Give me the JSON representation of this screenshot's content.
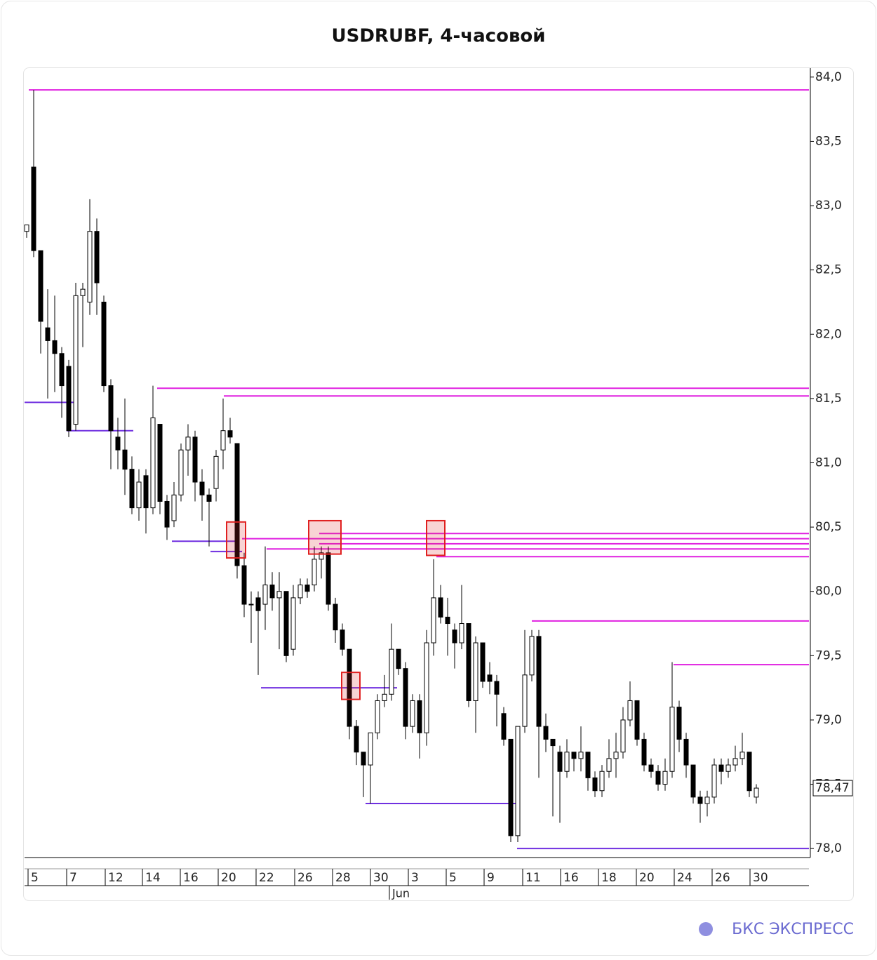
{
  "chart_data": {
    "type": "candlestick",
    "title": "USDRUBF, 4-часовой",
    "xlim": [
      -0.3,
      111.5
    ],
    "xticks": [
      {
        "value": 0.2,
        "label": "5"
      },
      {
        "value": 5.7,
        "label": "7"
      },
      {
        "value": 11.2,
        "label": "12"
      },
      {
        "value": 16.5,
        "label": "14"
      },
      {
        "value": 21.9,
        "label": "16"
      },
      {
        "value": 27.3,
        "label": "20"
      },
      {
        "value": 32.7,
        "label": "22"
      },
      {
        "value": 38.2,
        "label": "26"
      },
      {
        "value": 43.6,
        "label": "28"
      },
      {
        "value": 49.0,
        "label": "30"
      },
      {
        "value": 54.4,
        "label": "3"
      },
      {
        "value": 59.8,
        "label": "5"
      },
      {
        "value": 65.2,
        "label": "9"
      },
      {
        "value": 70.7,
        "label": "11"
      },
      {
        "value": 76.1,
        "label": "16"
      },
      {
        "value": 81.5,
        "label": "18"
      },
      {
        "value": 86.9,
        "label": "20"
      },
      {
        "value": 92.3,
        "label": "24"
      },
      {
        "value": 97.7,
        "label": "26"
      },
      {
        "value": 103.1,
        "label": "30"
      }
    ],
    "month_ticks": [
      {
        "value": 51.7,
        "label": "Jun"
      }
    ],
    "ylim": [
      77.93,
      84.07
    ],
    "yticks": [
      {
        "value": 78.0,
        "label": "78,0"
      },
      {
        "value": 78.5,
        "label": "78,5"
      },
      {
        "value": 79.0,
        "label": "79,0"
      },
      {
        "value": 79.5,
        "label": "79,5"
      },
      {
        "value": 80.0,
        "label": "80,0"
      },
      {
        "value": 80.5,
        "label": "80,5"
      },
      {
        "value": 81.0,
        "label": "81,0"
      },
      {
        "value": 81.5,
        "label": "81,5"
      },
      {
        "value": 82.0,
        "label": "82,0"
      },
      {
        "value": 82.5,
        "label": "82,5"
      },
      {
        "value": 83.0,
        "label": "83,0"
      },
      {
        "value": 83.5,
        "label": "83,5"
      },
      {
        "value": 84.0,
        "label": "84,0"
      }
    ],
    "up_color": "#ffffff",
    "down_color": "#000000",
    "series": [
      {
        "values": [
          [
            82.8,
            82.85,
            82.75,
            82.85
          ],
          [
            83.3,
            83.9,
            82.6,
            82.65
          ],
          [
            82.65,
            82.65,
            81.85,
            82.1
          ],
          [
            82.05,
            82.35,
            81.5,
            81.95
          ],
          [
            81.95,
            82.3,
            81.55,
            81.85
          ],
          [
            81.85,
            81.9,
            81.35,
            81.6
          ],
          [
            81.75,
            81.8,
            81.2,
            81.25
          ],
          [
            81.3,
            82.4,
            81.25,
            82.3
          ],
          [
            82.3,
            82.4,
            81.9,
            82.35
          ],
          [
            82.25,
            83.05,
            82.15,
            82.8
          ],
          [
            82.8,
            82.9,
            82.15,
            82.4
          ],
          [
            82.25,
            82.3,
            81.55,
            81.6
          ],
          [
            81.6,
            81.65,
            80.95,
            81.25
          ],
          [
            81.2,
            81.35,
            80.95,
            81.1
          ],
          [
            81.1,
            81.5,
            80.75,
            80.95
          ],
          [
            80.95,
            81.05,
            80.6,
            80.65
          ],
          [
            80.65,
            80.95,
            80.55,
            80.85
          ],
          [
            80.9,
            80.95,
            80.45,
            80.65
          ],
          [
            80.65,
            81.6,
            80.6,
            81.35
          ],
          [
            81.3,
            81.3,
            80.6,
            80.7
          ],
          [
            80.7,
            80.75,
            80.4,
            80.5
          ],
          [
            80.55,
            80.85,
            80.5,
            80.75
          ],
          [
            80.75,
            81.15,
            80.7,
            81.1
          ],
          [
            81.1,
            81.3,
            80.9,
            81.2
          ],
          [
            81.2,
            81.25,
            80.7,
            80.85
          ],
          [
            80.85,
            80.95,
            80.55,
            80.75
          ],
          [
            80.75,
            80.8,
            80.35,
            80.7
          ],
          [
            80.8,
            81.1,
            80.7,
            81.05
          ],
          [
            81.1,
            81.5,
            80.95,
            81.25
          ],
          [
            81.25,
            81.35,
            81.15,
            81.2
          ],
          [
            81.15,
            81.15,
            80.1,
            80.2
          ],
          [
            80.2,
            80.3,
            79.8,
            79.9
          ],
          [
            79.9,
            80.0,
            79.6,
            79.9
          ],
          [
            79.95,
            80.0,
            79.35,
            79.85
          ],
          [
            79.9,
            80.35,
            79.7,
            80.05
          ],
          [
            80.05,
            80.15,
            79.85,
            79.95
          ],
          [
            79.95,
            80.15,
            79.55,
            80.0
          ],
          [
            80.0,
            80.0,
            79.45,
            79.5
          ],
          [
            79.55,
            80.05,
            79.5,
            79.95
          ],
          [
            79.95,
            80.1,
            79.9,
            80.05
          ],
          [
            80.05,
            80.1,
            79.95,
            80.0
          ],
          [
            80.05,
            80.35,
            80.0,
            80.25
          ],
          [
            80.25,
            80.35,
            80.1,
            80.3
          ],
          [
            80.3,
            80.35,
            79.85,
            79.9
          ],
          [
            79.9,
            79.95,
            79.6,
            79.7
          ],
          [
            79.7,
            79.75,
            79.5,
            79.55
          ],
          [
            79.55,
            79.55,
            78.85,
            78.95
          ],
          [
            78.95,
            79.0,
            78.65,
            78.75
          ],
          [
            78.75,
            78.75,
            78.4,
            78.65
          ],
          [
            78.65,
            78.9,
            78.35,
            78.9
          ],
          [
            78.9,
            79.2,
            78.85,
            79.15
          ],
          [
            79.15,
            79.35,
            79.1,
            79.2
          ],
          [
            79.2,
            79.75,
            79.15,
            79.55
          ],
          [
            79.55,
            79.55,
            79.35,
            79.4
          ],
          [
            79.4,
            79.45,
            78.85,
            78.95
          ],
          [
            78.95,
            79.2,
            78.9,
            79.15
          ],
          [
            79.15,
            79.2,
            78.7,
            78.9
          ],
          [
            78.9,
            79.7,
            78.8,
            79.6
          ],
          [
            79.6,
            80.25,
            79.5,
            79.95
          ],
          [
            79.95,
            80.05,
            79.75,
            79.8
          ],
          [
            79.8,
            79.95,
            79.5,
            79.75
          ],
          [
            79.7,
            79.75,
            79.4,
            79.6
          ],
          [
            79.6,
            80.05,
            79.55,
            79.75
          ],
          [
            79.75,
            79.75,
            79.1,
            79.15
          ],
          [
            79.15,
            79.65,
            78.9,
            79.6
          ],
          [
            79.6,
            79.6,
            79.25,
            79.3
          ],
          [
            79.35,
            79.45,
            79.2,
            79.3
          ],
          [
            79.3,
            79.35,
            78.95,
            79.2
          ],
          [
            79.05,
            79.1,
            78.8,
            78.85
          ],
          [
            78.85,
            78.85,
            78.05,
            78.1
          ],
          [
            78.1,
            78.95,
            78.05,
            78.95
          ],
          [
            78.95,
            79.7,
            78.9,
            79.35
          ],
          [
            79.35,
            79.7,
            79.3,
            79.65
          ],
          [
            79.65,
            79.7,
            78.55,
            78.95
          ],
          [
            78.95,
            79.05,
            78.75,
            78.85
          ],
          [
            78.85,
            78.85,
            78.25,
            78.8
          ],
          [
            78.75,
            78.8,
            78.2,
            78.6
          ],
          [
            78.6,
            78.85,
            78.55,
            78.75
          ],
          [
            78.75,
            78.75,
            78.6,
            78.7
          ],
          [
            78.7,
            78.95,
            78.6,
            78.75
          ],
          [
            78.75,
            78.75,
            78.45,
            78.55
          ],
          [
            78.55,
            78.6,
            78.4,
            78.45
          ],
          [
            78.45,
            78.65,
            78.4,
            78.6
          ],
          [
            78.6,
            78.85,
            78.55,
            78.7
          ],
          [
            78.7,
            78.9,
            78.55,
            78.75
          ],
          [
            78.75,
            79.1,
            78.7,
            79.0
          ],
          [
            79.0,
            79.3,
            78.95,
            79.15
          ],
          [
            79.15,
            79.15,
            78.8,
            78.85
          ],
          [
            78.85,
            78.9,
            78.6,
            78.65
          ],
          [
            78.65,
            78.7,
            78.55,
            78.6
          ],
          [
            78.6,
            78.65,
            78.45,
            78.5
          ],
          [
            78.5,
            78.7,
            78.45,
            78.6
          ],
          [
            78.6,
            79.45,
            78.55,
            79.1
          ],
          [
            79.1,
            79.15,
            78.75,
            78.85
          ],
          [
            78.85,
            78.9,
            78.55,
            78.65
          ],
          [
            78.65,
            78.65,
            78.35,
            78.4
          ],
          [
            78.4,
            78.45,
            78.2,
            78.35
          ],
          [
            78.35,
            78.45,
            78.25,
            78.4
          ],
          [
            78.4,
            78.7,
            78.35,
            78.65
          ],
          [
            78.65,
            78.7,
            78.5,
            78.6
          ],
          [
            78.6,
            78.7,
            78.55,
            78.65
          ],
          [
            78.65,
            78.8,
            78.6,
            78.7
          ],
          [
            78.7,
            78.9,
            78.65,
            78.75
          ],
          [
            78.75,
            78.75,
            78.4,
            78.45
          ],
          [
            78.4,
            78.5,
            78.35,
            78.47
          ]
        ]
      }
    ],
    "levels": [
      {
        "value": 83.9,
        "start": 0.3,
        "color": "#e020e0"
      },
      {
        "value": 81.58,
        "start": 18.6,
        "color": "#e020e0"
      },
      {
        "value": 81.52,
        "start": 28.1,
        "color": "#e020e0"
      },
      {
        "value": 80.45,
        "start": 41.7,
        "color": "#e020e0"
      },
      {
        "value": 80.41,
        "start": 30.7,
        "color": "#e020e0"
      },
      {
        "value": 80.37,
        "start": 41.7,
        "color": "#e020e0"
      },
      {
        "value": 80.33,
        "start": 34.2,
        "color": "#e020e0"
      },
      {
        "value": 80.27,
        "start": 58.4,
        "color": "#e020e0"
      },
      {
        "value": 79.77,
        "start": 72.0,
        "color": "#e020e0"
      },
      {
        "value": 79.43,
        "start": 92.2,
        "color": "#e020e0"
      },
      {
        "value": 81.47,
        "start": -0.3,
        "end": 6.9,
        "color": "#7030e0"
      },
      {
        "value": 81.25,
        "start": 5.7,
        "end": 15.2,
        "color": "#7030e0"
      },
      {
        "value": 80.39,
        "start": 20.7,
        "end": 30.2,
        "color": "#7030e0"
      },
      {
        "value": 80.31,
        "start": 26.2,
        "end": 30.7,
        "color": "#7030e0"
      },
      {
        "value": 79.25,
        "start": 33.4,
        "end": 52.8,
        "color": "#7030e0"
      },
      {
        "value": 78.35,
        "start": 48.3,
        "end": 70.0,
        "color": "#7030e0"
      },
      {
        "value": 78.0,
        "start": 69.9,
        "color": "#7030e0"
      }
    ],
    "boxes": [
      {
        "x0": 28.5,
        "x1": 31.2,
        "y0": 80.26,
        "y1": 80.54
      },
      {
        "x0": 40.2,
        "x1": 44.8,
        "y0": 80.29,
        "y1": 80.55
      },
      {
        "x0": 57.0,
        "x1": 59.6,
        "y0": 80.28,
        "y1": 80.55
      },
      {
        "x0": 44.9,
        "x1": 47.5,
        "y0": 79.16,
        "y1": 79.37
      }
    ],
    "last_label": {
      "value": 78.47,
      "label": "78,47"
    }
  },
  "logo": "БКС ЭКСПРЕСС"
}
